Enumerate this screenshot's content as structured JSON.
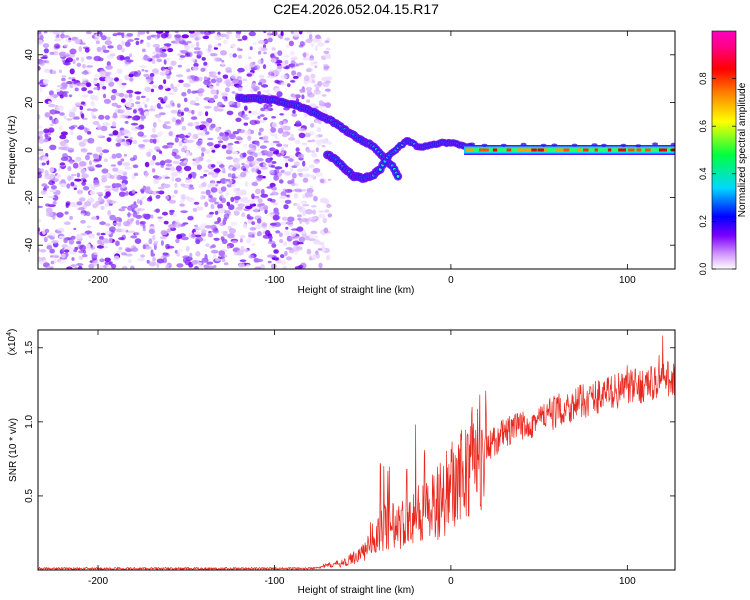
{
  "title": "C2E4.2026.052.04.15.R17",
  "spectrogram": {
    "type": "heatmap",
    "xlabel": "Height of straight line (km)",
    "ylabel": "Frequency (Hz)",
    "xlim": [
      -234,
      127
    ],
    "ylim": [
      -50,
      50
    ],
    "xticks": [
      -200,
      -100,
      0,
      100
    ],
    "yticks": [
      -40,
      -20,
      0,
      20,
      40
    ],
    "noise_region_x": [
      -234,
      -72
    ],
    "trace": {
      "upper_branch": [
        [
          -120,
          22
        ],
        [
          -100,
          21
        ],
        [
          -85,
          18
        ],
        [
          -75,
          15
        ],
        [
          -65,
          11
        ],
        [
          -55,
          6
        ],
        [
          -45,
          2
        ],
        [
          -38,
          -3
        ],
        [
          -32,
          -8
        ],
        [
          -30,
          -11
        ]
      ],
      "lower_branch": [
        [
          -70,
          -2
        ],
        [
          -65,
          -4
        ],
        [
          -60,
          -8
        ],
        [
          -55,
          -11
        ],
        [
          -50,
          -12
        ],
        [
          -45,
          -11
        ],
        [
          -40,
          -8
        ],
        [
          -36,
          -3
        ]
      ],
      "merge": [
        [
          -36,
          -3
        ],
        [
          -30,
          1
        ],
        [
          -25,
          4
        ],
        [
          -22,
          3
        ],
        [
          -18,
          1
        ],
        [
          -12,
          2
        ],
        [
          -6,
          3
        ],
        [
          0,
          3
        ],
        [
          6,
          2
        ],
        [
          12,
          1
        ]
      ],
      "steady": [
        [
          12,
          0
        ],
        [
          127,
          0
        ]
      ]
    }
  },
  "colorbar": {
    "label": "Normalized spectral amplitude",
    "ticks": [
      "0.0",
      "0.2",
      "0.4",
      "0.6",
      "0.8"
    ],
    "tick_values": [
      0.0,
      0.2,
      0.4,
      0.6,
      0.8
    ],
    "range": [
      0,
      1
    ],
    "colors": [
      "#ffffff",
      "#d49bff",
      "#7b00ff",
      "#0000ff",
      "#00d8ff",
      "#00ff40",
      "#ffff00",
      "#ff8000",
      "#ff0000",
      "#ff0080",
      "#ff00c0"
    ]
  },
  "snr": {
    "type": "line",
    "xlabel": "Height of straight line (km)",
    "ylabel": "SNR (10 * v/v)",
    "scale_label": "(x10",
    "scale_exp": "4",
    "scale_close": ")",
    "xlim": [
      -234,
      127
    ],
    "ylim": [
      0,
      1.62
    ],
    "xticks": [
      -200,
      -100,
      0,
      100
    ],
    "yticks": [
      0.5,
      1.0,
      1.5
    ],
    "ytick_labels": [
      "0.5",
      "1.0",
      "1.5"
    ],
    "color": "#e8281e",
    "profile": [
      [
        -234,
        0.01
      ],
      [
        -80,
        0.01
      ],
      [
        -60,
        0.05
      ],
      [
        -50,
        0.12
      ],
      [
        -40,
        0.28
      ],
      [
        -30,
        0.3
      ],
      [
        -20,
        0.38
      ],
      [
        -10,
        0.42
      ],
      [
        0,
        0.55
      ],
      [
        10,
        0.7
      ],
      [
        20,
        0.82
      ],
      [
        30,
        0.92
      ],
      [
        50,
        1.02
      ],
      [
        70,
        1.12
      ],
      [
        90,
        1.2
      ],
      [
        110,
        1.25
      ],
      [
        127,
        1.3
      ]
    ],
    "spikes": [
      [
        -40,
        0.72
      ],
      [
        -38,
        0.7
      ],
      [
        -20,
        0.98
      ],
      [
        -25,
        0.68
      ],
      [
        -15,
        0.78
      ],
      [
        120,
        1.58
      ],
      [
        118,
        1.45
      ],
      [
        127,
        1.35
      ],
      [
        100,
        1.38
      ]
    ]
  }
}
